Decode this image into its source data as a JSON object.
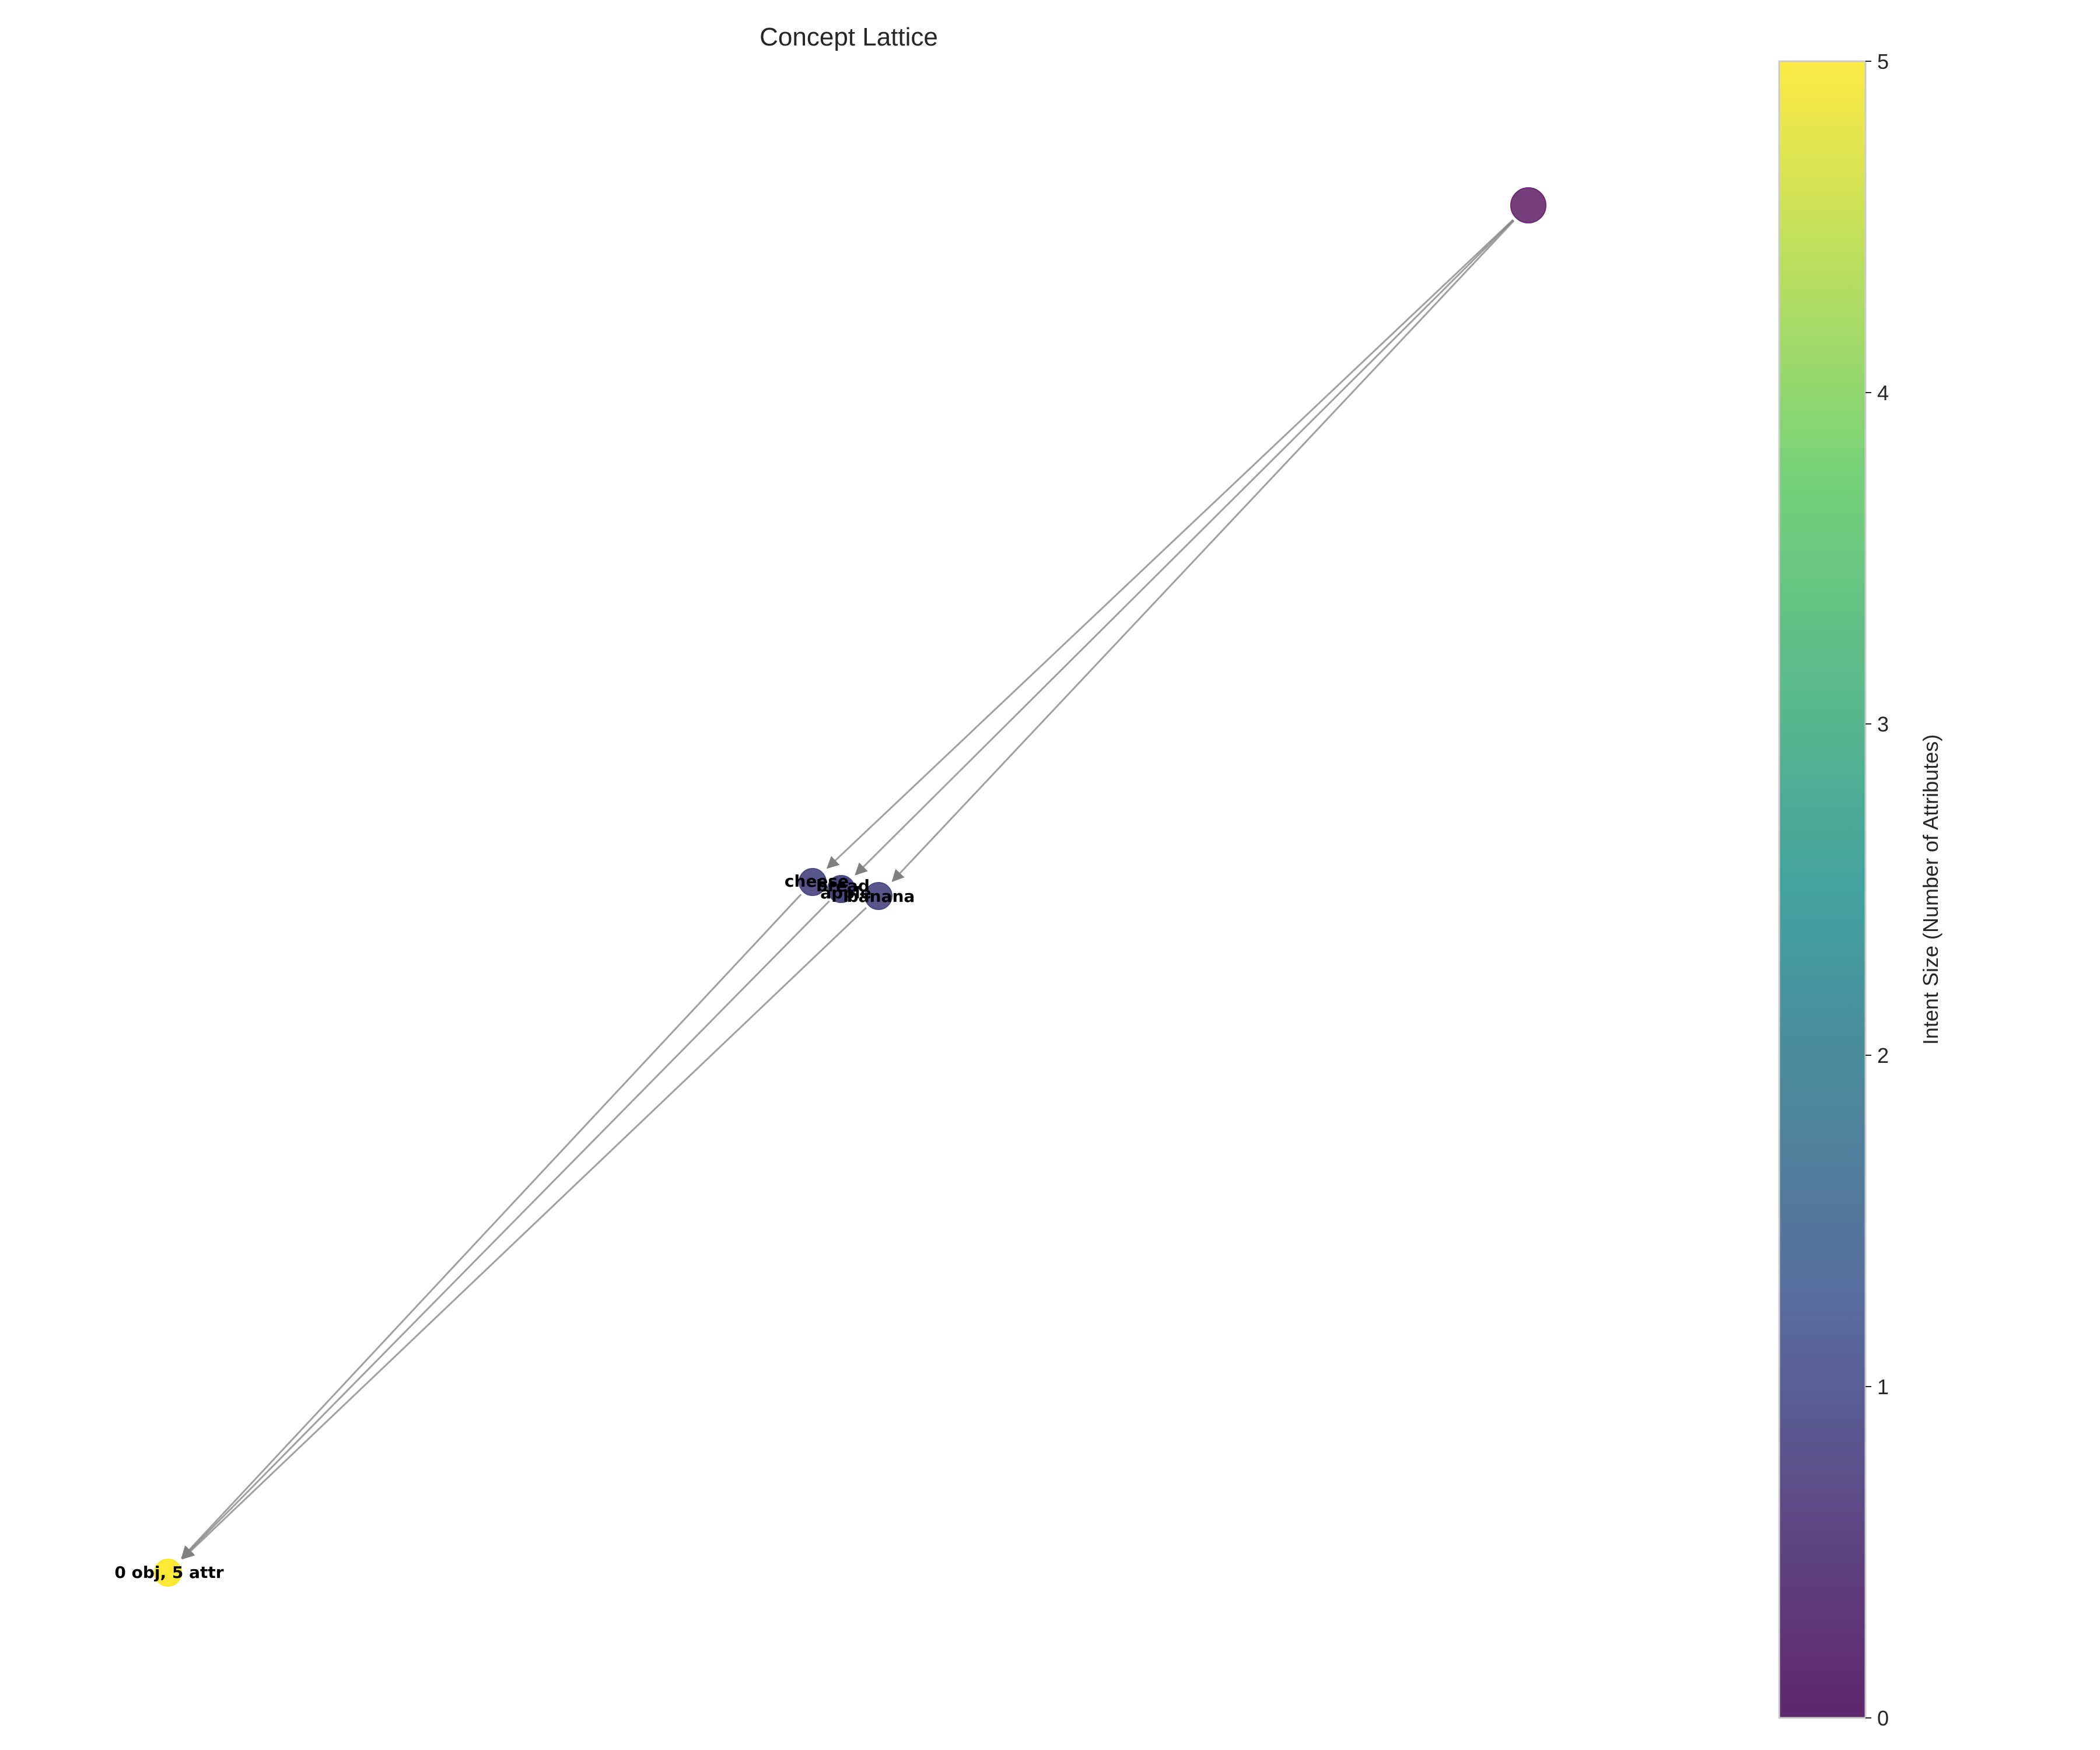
{
  "title": "Concept Lattice",
  "colorbar": {
    "label": "Intent Size (Number of Attributes)",
    "min": 0,
    "max": 5,
    "ticks": [
      "0",
      "1",
      "2",
      "3",
      "4",
      "5"
    ],
    "colormap": "viridis",
    "stops": [
      "#440154",
      "#3b528b",
      "#21918c",
      "#5ec962",
      "#fde725"
    ]
  },
  "edge_color": "#808080",
  "chart_data": {
    "type": "network",
    "title": "Concept Lattice",
    "nodes": [
      {
        "id": "top",
        "label": "",
        "intent_size": 0,
        "color": "#6a2c70",
        "emphasis": "large"
      },
      {
        "id": "cheese",
        "label": "cheese",
        "intent_size": 1,
        "color": "#4a4880"
      },
      {
        "id": "bread",
        "label": "bread",
        "intent_size": 1,
        "color": "#4a4880"
      },
      {
        "id": "apple",
        "label": "apple",
        "intent_size": 1,
        "color": "#4a4880"
      },
      {
        "id": "banana",
        "label": "banana",
        "intent_size": 1,
        "color": "#4a4880"
      },
      {
        "id": "bottom",
        "label": "0 obj, 5 attr",
        "intent_size": 5,
        "color": "#fde725"
      }
    ],
    "edges": [
      {
        "from": "top",
        "to": "cheese"
      },
      {
        "from": "top",
        "to": "bread"
      },
      {
        "from": "top",
        "to": "banana"
      },
      {
        "from": "cheese",
        "to": "bottom"
      },
      {
        "from": "bread",
        "to": "bottom"
      },
      {
        "from": "banana",
        "to": "bottom"
      }
    ]
  }
}
